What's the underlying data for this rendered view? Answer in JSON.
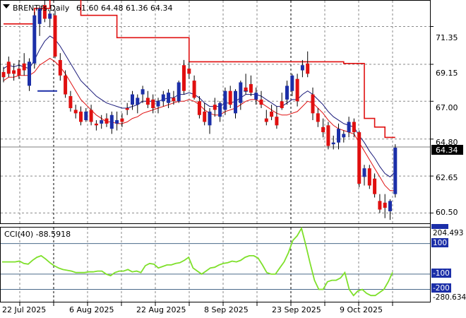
{
  "chart_data": [
    {
      "type": "candlestick",
      "title": "BRENT.fs,Daily",
      "ohlc_header": [
        "61.60",
        "64.48",
        "61.36",
        "64.34"
      ],
      "last_price_label": "64.34",
      "y_ticks": [
        "71.35",
        "69.15",
        "67.00",
        "64.80",
        "62.65",
        "60.50"
      ],
      "ylim": [
        59.9,
        72.85
      ],
      "x_ticks": [
        "22 Jul 2025",
        "6 Aug 2025",
        "22 Aug 2025",
        "8 Sep 2025",
        "23 Sep 2025",
        "9 Oct 2025"
      ],
      "colors": {
        "up": "#1c2fa8",
        "down": "#e01010",
        "fast_ma": "#1a1a7a",
        "slow_ma": "#e01010",
        "trailing_stop": "#e01010",
        "last_line": "#7f7f7f"
      },
      "candles": [
        [
          68.7,
          69.0,
          68.1,
          68.4
        ],
        [
          69.3,
          69.6,
          68.4,
          68.6
        ],
        [
          68.8,
          69.2,
          68.2,
          68.6
        ],
        [
          68.9,
          69.4,
          68.3,
          68.5
        ],
        [
          69.2,
          69.8,
          68.5,
          68.8
        ],
        [
          67.9,
          69.5,
          67.6,
          69.3
        ],
        [
          69.2,
          72.2,
          68.9,
          72.0
        ],
        [
          71.5,
          72.6,
          70.8,
          72.4
        ],
        [
          72.6,
          73.2,
          71.6,
          71.8
        ],
        [
          71.8,
          72.3,
          71.3,
          72.1
        ],
        [
          72.0,
          72.3,
          69.5,
          69.6
        ],
        [
          69.4,
          69.8,
          68.2,
          68.5
        ],
        [
          68.5,
          68.8,
          67.2,
          67.4
        ],
        [
          67.3,
          67.6,
          66.4,
          66.6
        ],
        [
          66.5,
          66.8,
          66.0,
          66.3
        ],
        [
          66.4,
          66.7,
          65.6,
          65.8
        ],
        [
          65.9,
          66.6,
          65.8,
          66.4
        ],
        [
          66.5,
          66.8,
          65.6,
          65.8
        ],
        [
          65.7,
          65.9,
          65.3,
          65.6
        ],
        [
          65.7,
          66.2,
          65.4,
          65.9
        ],
        [
          66.0,
          66.3,
          65.5,
          65.7
        ],
        [
          65.4,
          66.4,
          65.1,
          66.2
        ],
        [
          65.7,
          66.4,
          65.3,
          65.9
        ],
        [
          66.0,
          66.3,
          65.5,
          65.8
        ],
        [
          66.6,
          66.9,
          66.2,
          66.5
        ],
        [
          66.8,
          67.6,
          66.5,
          67.4
        ],
        [
          66.8,
          67.4,
          66.3,
          67.2
        ],
        [
          67.4,
          67.9,
          66.9,
          67.7
        ],
        [
          67.2,
          67.6,
          66.6,
          66.8
        ],
        [
          67.1,
          67.4,
          66.3,
          66.6
        ],
        [
          66.7,
          67.2,
          66.3,
          67.0
        ],
        [
          67.0,
          67.6,
          66.7,
          67.4
        ],
        [
          66.9,
          67.7,
          66.6,
          67.5
        ],
        [
          67.2,
          67.6,
          66.8,
          67.0
        ],
        [
          67.0,
          68.2,
          66.9,
          68.1
        ],
        [
          69.1,
          69.4,
          67.4,
          67.6
        ],
        [
          68.9,
          69.3,
          68.3,
          68.6
        ],
        [
          68.2,
          68.5,
          67.1,
          67.2
        ],
        [
          67.0,
          67.3,
          66.0,
          66.2
        ],
        [
          66.4,
          66.9,
          65.6,
          65.8
        ],
        [
          65.6,
          66.6,
          65.1,
          66.4
        ],
        [
          66.8,
          67.2,
          66.1,
          66.5
        ],
        [
          66.1,
          67.0,
          65.8,
          66.9
        ],
        [
          66.5,
          67.8,
          66.2,
          67.6
        ],
        [
          67.6,
          67.9,
          66.6,
          66.8
        ],
        [
          66.3,
          67.7,
          66.0,
          67.6
        ],
        [
          66.9,
          68.2,
          66.5,
          68.1
        ],
        [
          67.8,
          68.6,
          67.4,
          67.6
        ],
        [
          68.0,
          68.5,
          67.3,
          67.5
        ],
        [
          67.1,
          67.8,
          66.8,
          67.5
        ],
        [
          67.1,
          67.6,
          66.6,
          66.8
        ],
        [
          66.0,
          66.5,
          65.6,
          65.8
        ],
        [
          66.4,
          66.8,
          65.9,
          66.1
        ],
        [
          66.1,
          66.7,
          65.4,
          65.6
        ],
        [
          67.0,
          67.5,
          66.5,
          66.6
        ],
        [
          67.1,
          68.2,
          66.8,
          67.9
        ],
        [
          67.6,
          68.6,
          67.3,
          68.5
        ],
        [
          68.3,
          68.6,
          66.7,
          67.0
        ],
        [
          68.8,
          69.4,
          68.4,
          69.1
        ],
        [
          69.2,
          69.9,
          68.4,
          68.6
        ],
        [
          67.4,
          67.8,
          65.9,
          66.3
        ],
        [
          66.3,
          66.6,
          65.5,
          65.8
        ],
        [
          65.5,
          66.0,
          64.9,
          65.2
        ],
        [
          65.6,
          65.8,
          64.2,
          64.4
        ],
        [
          64.5,
          65.0,
          64.2,
          64.6
        ],
        [
          64.6,
          65.7,
          64.2,
          65.4
        ],
        [
          64.9,
          65.3,
          64.6,
          65.1
        ],
        [
          65.2,
          66.1,
          64.9,
          65.8
        ],
        [
          65.8,
          66.0,
          64.9,
          65.2
        ],
        [
          65.2,
          65.3,
          62.0,
          62.2
        ],
        [
          62.6,
          63.3,
          62.1,
          63.1
        ],
        [
          63.1,
          63.3,
          61.9,
          62.1
        ],
        [
          62.5,
          62.8,
          61.4,
          61.6
        ],
        [
          61.2,
          61.6,
          60.5,
          60.7
        ],
        [
          61.1,
          61.6,
          60.2,
          60.8
        ],
        [
          60.6,
          61.3,
          60.1,
          61.2
        ],
        [
          61.6,
          64.5,
          61.4,
          64.3
        ]
      ],
      "ma_fast": [
        68.9,
        69.1,
        69.0,
        69.1,
        69.0,
        68.9,
        69.4,
        70.0,
        70.5,
        70.8,
        70.6,
        70.2,
        69.7,
        69.2,
        68.7,
        68.2,
        67.9,
        67.6,
        67.3,
        67.1,
        66.9,
        66.8,
        66.7,
        66.6,
        66.6,
        66.7,
        66.8,
        67.0,
        67.0,
        67.0,
        67.0,
        67.1,
        67.2,
        67.2,
        67.4,
        67.4,
        67.5,
        67.4,
        67.2,
        66.9,
        66.7,
        66.7,
        66.7,
        66.9,
        66.9,
        67.0,
        67.2,
        67.4,
        67.4,
        67.4,
        67.3,
        67.1,
        66.9,
        66.7,
        66.7,
        66.9,
        67.1,
        67.1,
        67.4,
        67.6,
        67.4,
        67.1,
        66.8,
        66.4,
        66.1,
        65.9,
        65.7,
        65.6,
        65.5,
        65.0,
        64.6,
        64.1,
        63.7,
        63.2,
        62.8,
        62.6,
        62.9
      ],
      "ma_slow": [
        68.2,
        68.4,
        68.4,
        68.5,
        68.5,
        68.5,
        68.7,
        69.1,
        69.3,
        69.5,
        69.3,
        69.0,
        68.6,
        68.1,
        67.6,
        67.1,
        66.8,
        66.5,
        66.2,
        66.0,
        65.8,
        65.8,
        65.7,
        65.7,
        65.8,
        66.0,
        66.1,
        66.3,
        66.4,
        66.5,
        66.6,
        66.7,
        66.8,
        66.9,
        67.0,
        67.0,
        67.1,
        67.0,
        66.8,
        66.5,
        66.3,
        66.2,
        66.2,
        66.4,
        66.5,
        66.6,
        66.8,
        67.0,
        67.1,
        67.1,
        66.9,
        66.7,
        66.5,
        66.3,
        66.2,
        66.2,
        66.3,
        66.4,
        66.7,
        67.0,
        66.9,
        66.6,
        66.3,
        65.9,
        65.6,
        65.4,
        65.3,
        65.2,
        65.1,
        64.6,
        64.1,
        63.6,
        63.1,
        62.6,
        62.1,
        61.8,
        61.8
      ],
      "trailing_stop_steps": [
        [
          0,
          71.5
        ],
        [
          6,
          72.4
        ],
        [
          9,
          73.2
        ],
        [
          15,
          72.0
        ],
        [
          22,
          70.7
        ],
        [
          36,
          69.3
        ],
        [
          66,
          69.2
        ],
        [
          70,
          66.0
        ],
        [
          72,
          65.5
        ],
        [
          74,
          64.9
        ]
      ],
      "trailing_stop_end": 76,
      "marker_lines": [
        {
          "from": 7,
          "to": 10,
          "value": 67.6,
          "color": "#1c2fa8"
        },
        {
          "from": 47,
          "to": 47,
          "value": 67.6,
          "color": "#1c2fa8"
        }
      ]
    },
    {
      "type": "line",
      "title": "CCI(40) -88.5918",
      "levels": [
        "100",
        "-100",
        "-200"
      ],
      "level_values": [
        100,
        -100,
        -200
      ],
      "scale_max_label": "204.493",
      "scale_min_label": "-280.634",
      "ylim": [
        -280.634,
        204.493
      ],
      "color": "#7ee02a",
      "values": [
        -20,
        -20,
        -20,
        -20,
        -15,
        -30,
        -35,
        -10,
        10,
        20,
        0,
        -25,
        -45,
        -60,
        -70,
        -75,
        -80,
        -90,
        -90,
        -90,
        -85,
        -85,
        -80,
        -80,
        -100,
        -110,
        -90,
        -80,
        -80,
        -70,
        -85,
        -80,
        -90,
        -45,
        -30,
        -35,
        -60,
        -50,
        -40,
        -40,
        -30,
        -25,
        -10,
        10,
        -60,
        -80,
        -100,
        -80,
        -60,
        -55,
        -40,
        -30,
        -25,
        -15,
        -20,
        -10,
        10,
        20,
        20,
        5,
        -40,
        -90,
        -100,
        -100,
        -60,
        -20,
        40,
        120,
        150,
        200,
        90,
        -30,
        -140,
        -200,
        -200,
        -150,
        -140,
        -140,
        -125,
        -90,
        -200,
        -240,
        -210,
        -200,
        -225,
        -240,
        -240,
        -220,
        -200,
        -150,
        -88.59
      ]
    }
  ],
  "time_axis_labels": [
    "22 Jul 2025",
    "6 Aug 2025",
    "22 Aug 2025",
    "8 Sep 2025",
    "23 Sep 2025",
    "9 Oct 2025"
  ]
}
